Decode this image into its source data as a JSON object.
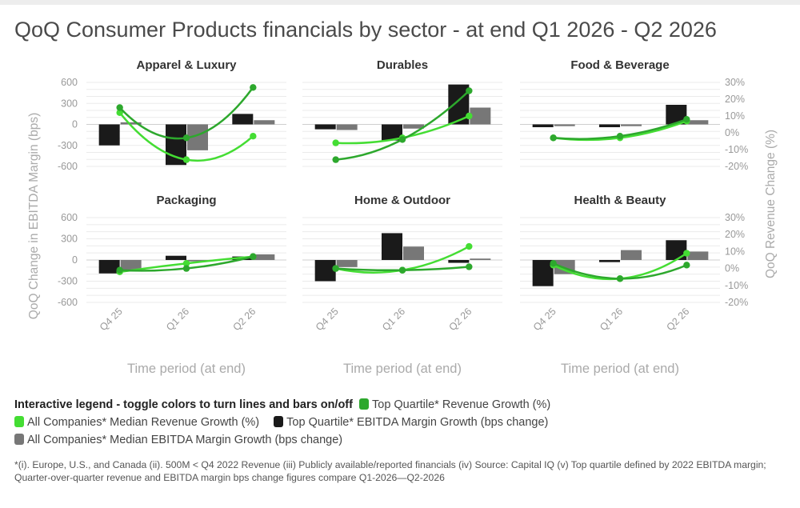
{
  "title": "QoQ Consumer Products financials by sector - at end Q1 2026 - Q2 2026",
  "legend": {
    "title": "Interactive legend - toggle colors to turn lines and bars on/off",
    "items": [
      {
        "label": "Top Quartile* Revenue Growth (%)",
        "color": "#2da82d"
      },
      {
        "label": "All Companies* Median Revenue Growth (%)",
        "color": "#44dd33"
      },
      {
        "label": "Top Quartile* EBITDA Margin Growth (bps change)",
        "color": "#1a1a1a"
      },
      {
        "label": "All Companies* Median EBITDA Margin Growth (bps change)",
        "color": "#777777"
      }
    ]
  },
  "footnote": "*(i). Europe, U.S., and Canada (ii). 500M < Q4 2022 Revenue (iii) Publicly available/reported financials (iv) Source: Capital IQ (v) Top quartile defined by 2022 EBITDA margin; Quarter-over-quarter revenue and EBITDA margin bps change figures compare Q1-2026—Q2-2026",
  "chart_data": {
    "type": "bar",
    "categories": [
      "Q4 25",
      "Q1 26",
      "Q2 26"
    ],
    "xlabel": "Time period (at end)",
    "ylabel_left": "QoQ Change in EBITDA Margin (bps)",
    "ylabel_right": "QoQ Revenue Change (%)",
    "ylim_left": [
      -600,
      600
    ],
    "yticks_left": [
      "600",
      "300",
      "0",
      "-300",
      "-600"
    ],
    "ylim_right": [
      -20,
      30
    ],
    "yticks_right": [
      "30%",
      "20%",
      "10%",
      "0%",
      "-10%",
      "-20%"
    ],
    "panels": [
      {
        "title": "Apparel & Luxury",
        "top_ebitda": [
          -300,
          -580,
          150
        ],
        "median_ebitda": [
          30,
          -370,
          60
        ],
        "top_revenue": [
          15,
          -3,
          27
        ],
        "median_revenue": [
          12,
          -16,
          -2
        ]
      },
      {
        "title": "Durables",
        "top_ebitda": [
          -70,
          -230,
          570
        ],
        "median_ebitda": [
          -80,
          -60,
          240
        ],
        "top_revenue": [
          -16,
          -4,
          25
        ],
        "median_revenue": [
          -6,
          -3,
          10
        ]
      },
      {
        "title": "Food & Beverage",
        "top_ebitda": [
          -40,
          -40,
          280
        ],
        "median_ebitda": [
          -25,
          -25,
          60
        ],
        "top_revenue": [
          -3,
          -2,
          8
        ],
        "median_revenue": [
          -3,
          -3,
          7
        ]
      },
      {
        "title": "Packaging",
        "top_ebitda": [
          -190,
          60,
          50
        ],
        "median_ebitda": [
          -160,
          -20,
          80
        ],
        "top_revenue": [
          -1,
          0,
          7
        ],
        "median_revenue": [
          -2,
          3,
          7
        ]
      },
      {
        "title": "Home & Outdoor",
        "top_ebitda": [
          -300,
          380,
          -40
        ],
        "median_ebitda": [
          -100,
          190,
          20
        ],
        "top_revenue": [
          0,
          -1,
          1
        ],
        "median_revenue": [
          0,
          -1,
          13
        ]
      },
      {
        "title": "Health & Beauty",
        "top_ebitda": [
          -370,
          -30,
          280
        ],
        "median_ebitda": [
          -200,
          140,
          120
        ],
        "top_revenue": [
          3,
          -6,
          2
        ],
        "median_revenue": [
          2,
          -6,
          9
        ]
      }
    ]
  }
}
